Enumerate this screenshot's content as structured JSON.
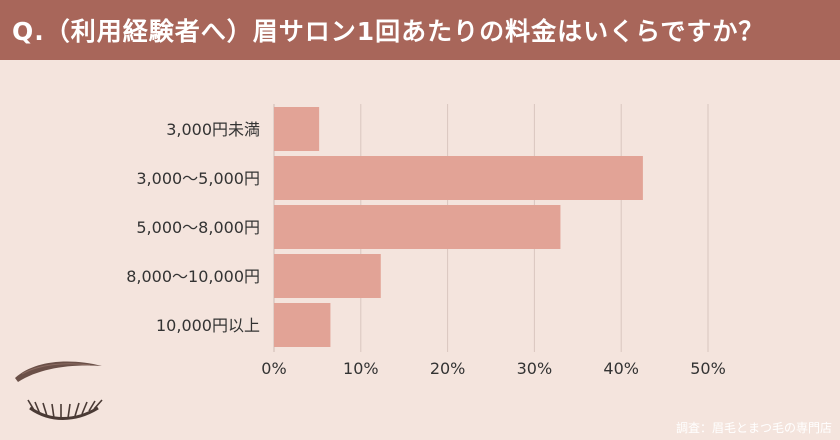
{
  "header": {
    "title": "Q.（利用経験者へ）眉サロン1回あたりの料金はいくらですか？"
  },
  "chart_data": {
    "type": "bar",
    "orientation": "horizontal",
    "title": "",
    "xlabel": "",
    "ylabel": "",
    "categories": [
      "3,000円未満",
      "3,000〜5,000円",
      "5,000〜8,000円",
      "8,000〜10,000円",
      "10,000円以上"
    ],
    "values": [
      5.2,
      42.5,
      33.0,
      12.3,
      6.5
    ],
    "xlim": [
      0,
      50
    ],
    "xticks": [
      0,
      10,
      20,
      30,
      40,
      50
    ],
    "tick_labels": [
      "0%",
      "10%",
      "20%",
      "30%",
      "40%",
      "50%"
    ],
    "grid": true,
    "bar_color": "#e2a396",
    "grid_color": "#d9c6bf"
  },
  "footer": {
    "source": "調査：眉毛とまつ毛の専門店"
  },
  "colors": {
    "header_bg": "#a8665a",
    "background": "#f4e4dd",
    "text": "#333333"
  }
}
